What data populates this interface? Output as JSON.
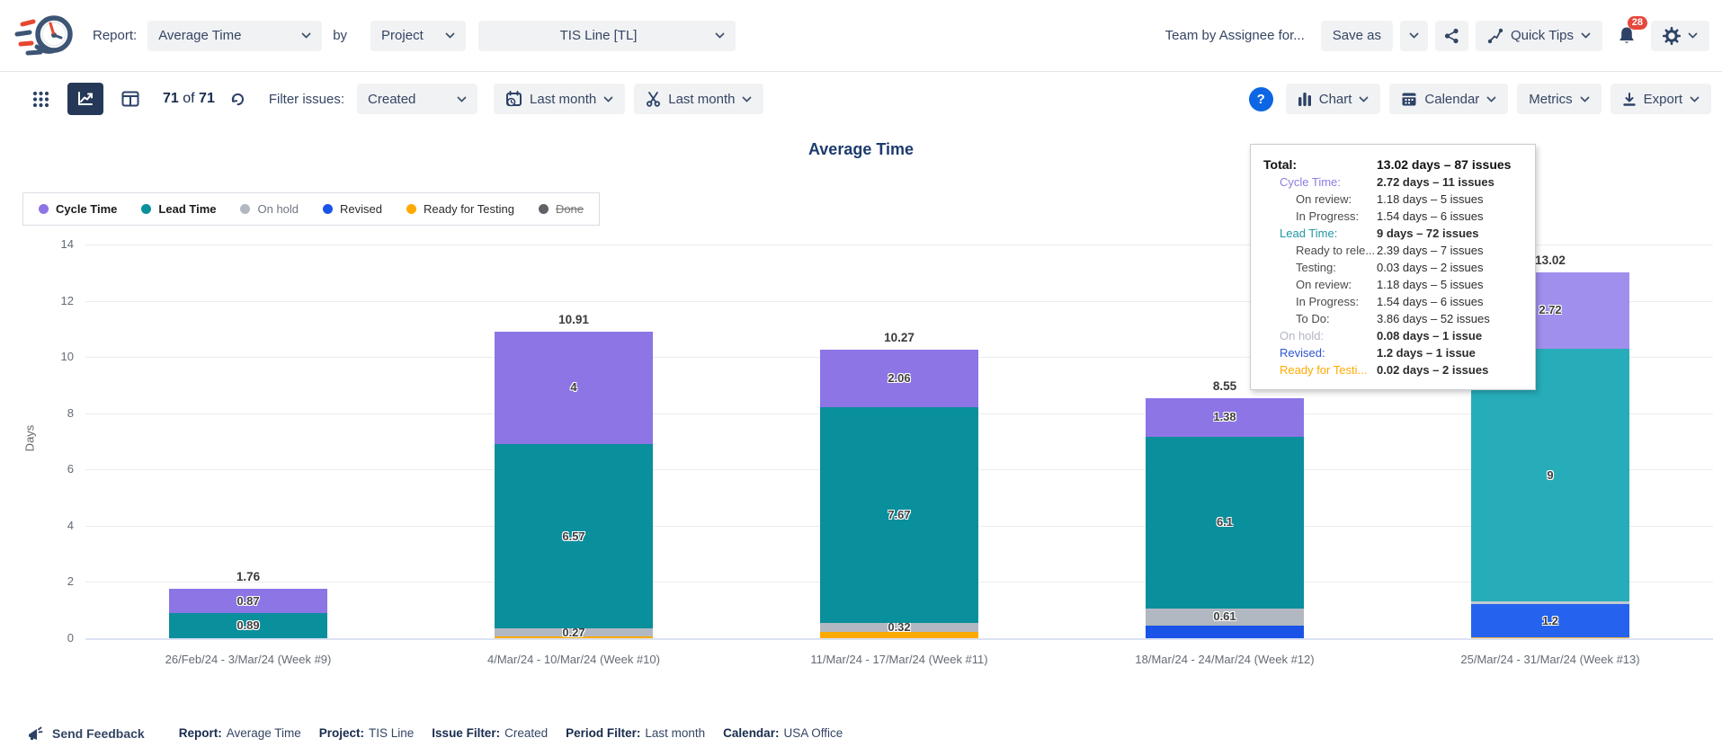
{
  "header": {
    "report_label": "Report:",
    "report_value": "Average Time",
    "by_label": "by",
    "group_value": "Project",
    "project_value": "TIS Line [TL]",
    "team_text": "Team by Assignee for...",
    "save_as_label": "Save as",
    "quick_tips_label": "Quick Tips",
    "notification_count": "28"
  },
  "toolbar": {
    "count_current": "71",
    "count_of": "of",
    "count_total": "71",
    "filter_label": "Filter issues:",
    "issue_filter_value": "Created",
    "period_filter_value": "Last month",
    "workweek_filter_value": "Last month",
    "chart_label": "Chart",
    "calendar_label": "Calendar",
    "metrics_label": "Metrics",
    "export_label": "Export",
    "help_label": "?"
  },
  "chart_data": {
    "type": "stacked-bar",
    "title": "Average Time",
    "ylabel": "Days",
    "ylim": [
      0,
      14
    ],
    "yticks": [
      0,
      2,
      4,
      6,
      8,
      10,
      12,
      14
    ],
    "grid": true,
    "legend_position": "top-left",
    "categories": [
      "26/Feb/24 - 3/Mar/24 (Week #9)",
      "4/Mar/24 - 10/Mar/24 (Week #10)",
      "11/Mar/24 - 17/Mar/24 (Week #11)",
      "18/Mar/24 - 24/Mar/24 (Week #12)",
      "25/Mar/24 - 31/Mar/24 (Week #13)"
    ],
    "bar_totals": [
      "1.76",
      "10.91",
      "10.27",
      "8.55",
      "13.02"
    ],
    "highlight_column": 4,
    "series": [
      {
        "name": "Cycle Time",
        "color": "#8d75e6",
        "highlight_color": "#a08fec",
        "values": [
          0.87,
          4,
          2.06,
          1.38,
          2.72
        ],
        "labels": [
          "0.87",
          "4",
          "2.06",
          "1.38",
          "2.72"
        ]
      },
      {
        "name": "Lead Time",
        "color": "#0a8f9c",
        "highlight_color": "#26adb9",
        "values": [
          0.89,
          6.57,
          7.67,
          6.1,
          9
        ],
        "labels": [
          "0.89",
          "6.57",
          "7.67",
          "6.1",
          "9"
        ]
      },
      {
        "name": "On hold",
        "color": "#b2b8c1",
        "highlight_color": "#c3c9d2",
        "values": [
          0,
          0.27,
          0.32,
          0.61,
          0.08
        ],
        "labels": [
          "",
          "0.27",
          "0.32",
          "0.61",
          "0.08"
        ]
      },
      {
        "name": "Revised",
        "color": "#1a53e8",
        "highlight_color": "#2563ee",
        "values": [
          0,
          0,
          0,
          0.46,
          1.2
        ],
        "labels": [
          "",
          "",
          "",
          "",
          "1.2"
        ]
      },
      {
        "name": "Ready for Testing",
        "color": "#ffaa00",
        "highlight_color": "#ffb62e",
        "values": [
          0,
          0.07,
          0.22,
          0,
          0.02
        ],
        "labels": [
          "",
          "",
          "",
          "",
          ""
        ]
      }
    ]
  },
  "legend": {
    "items": [
      {
        "label": "Cycle Time",
        "color": "#8d75e6",
        "bold": true
      },
      {
        "label": "Lead Time",
        "color": "#0a8f9c",
        "bold": true
      },
      {
        "label": "On hold",
        "color": "#b2b8c1",
        "muted": true
      },
      {
        "label": "Revised",
        "color": "#1a53e8"
      },
      {
        "label": "Ready for Testing",
        "color": "#ffaa00"
      },
      {
        "label": "Done",
        "color": "#5f6368",
        "strike": true
      }
    ]
  },
  "tooltip": {
    "rows": [
      {
        "label": "Total:",
        "value": "13.02 days – 87 issues",
        "level": 0,
        "total": true
      },
      {
        "label": "Cycle Time:",
        "value": "2.72 days – 11 issues",
        "level": 1,
        "color": "#8f7ce0",
        "strong": true
      },
      {
        "label": "On review:",
        "value": "1.18 days – 5 issues",
        "level": 2
      },
      {
        "label": "In Progress:",
        "value": "1.54 days – 6 issues",
        "level": 2
      },
      {
        "label": "Lead Time:",
        "value": "9 days – 72 issues",
        "level": 1,
        "color": "#2196a3",
        "strong": true
      },
      {
        "label": "Ready to rele...",
        "value": "2.39 days – 7 issues",
        "level": 2
      },
      {
        "label": "Testing:",
        "value": "0.03 days – 2 issues",
        "level": 2
      },
      {
        "label": "On review:",
        "value": "1.18 days – 5 issues",
        "level": 2
      },
      {
        "label": "In Progress:",
        "value": "1.54 days – 6 issues",
        "level": 2
      },
      {
        "label": "To Do:",
        "value": "3.86 days – 52 issues",
        "level": 2
      },
      {
        "label": "On hold:",
        "value": "0.08 days – 1 issue",
        "level": 1,
        "color": "#b0b6bf",
        "strong": true
      },
      {
        "label": "Revised:",
        "value": "1.2 days – 1 issue",
        "level": 1,
        "color": "#2c55cf",
        "strong": true
      },
      {
        "label": "Ready for Testi...",
        "value": "0.02 days – 2 issues",
        "level": 1,
        "color": "#ffaa00",
        "strong": true
      }
    ]
  },
  "footer": {
    "send_feedback": "Send Feedback",
    "summary": [
      {
        "label": "Report:",
        "value": "Average Time"
      },
      {
        "label": "Project:",
        "value": "TIS Line"
      },
      {
        "label": "Issue Filter:",
        "value": "Created"
      },
      {
        "label": "Period Filter:",
        "value": "Last month"
      },
      {
        "label": "Calendar:",
        "value": "USA Office"
      }
    ]
  }
}
